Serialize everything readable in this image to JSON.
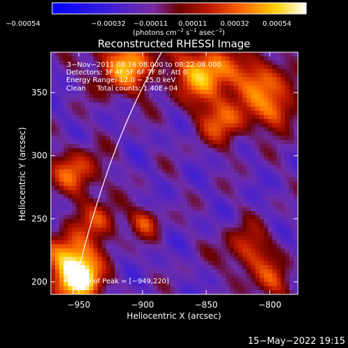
{
  "chart_data": {
    "type": "heatmap",
    "title": "Reconstructed RHESSI Image",
    "xlabel": "Heliocentric X (arcsec)",
    "ylabel": "Heliocentric Y (arcsec)",
    "xlim": [
      -972,
      -778
    ],
    "ylim": [
      190,
      382
    ],
    "xticks": [
      -950,
      -900,
      -850,
      -800
    ],
    "xtick_labels": [
      "−950",
      "−900",
      "−850",
      "−800"
    ],
    "yticks": [
      200,
      250,
      300,
      350
    ],
    "ytick_labels": [
      "200",
      "250",
      "300",
      "350"
    ],
    "colorbar": {
      "range": [
        -0.00054,
        0.00054
      ],
      "tick_labels": [
        "−0.00054",
        "−0.00032",
        "−0.00011",
        "0.00011",
        "0.00032",
        "0.00054"
      ],
      "unit_label_parts": [
        "(photons cm",
        "−2",
        " s",
        "−1",
        " asec",
        "−2",
        ")"
      ],
      "colors": [
        "#0000ff",
        "#6a35d0",
        "#8a1010",
        "#e85000",
        "#ffd000",
        "#ffffff"
      ]
    },
    "annotations": [
      "3−Nov−2011 08:16:08.000 to 08:22:08.000",
      "Detectors: 3F 4F 5F 6F 7F 8F, Att 0",
      "Energy Range: 12.0 − 25.0 keV",
      "Clean     Total counts: 1.40E+04"
    ],
    "peak_label": "Position of Peak = [−949,220]",
    "peak_position": [
      -949,
      220
    ],
    "limb_curve": [
      [
        -955,
        190
      ],
      [
        -940,
        250
      ],
      [
        -920,
        310
      ],
      [
        -900,
        355
      ],
      [
        -885,
        382
      ]
    ],
    "grid": false,
    "legend": "none"
  },
  "footer": {
    "timestamp": "15−May−2022 19:15"
  }
}
